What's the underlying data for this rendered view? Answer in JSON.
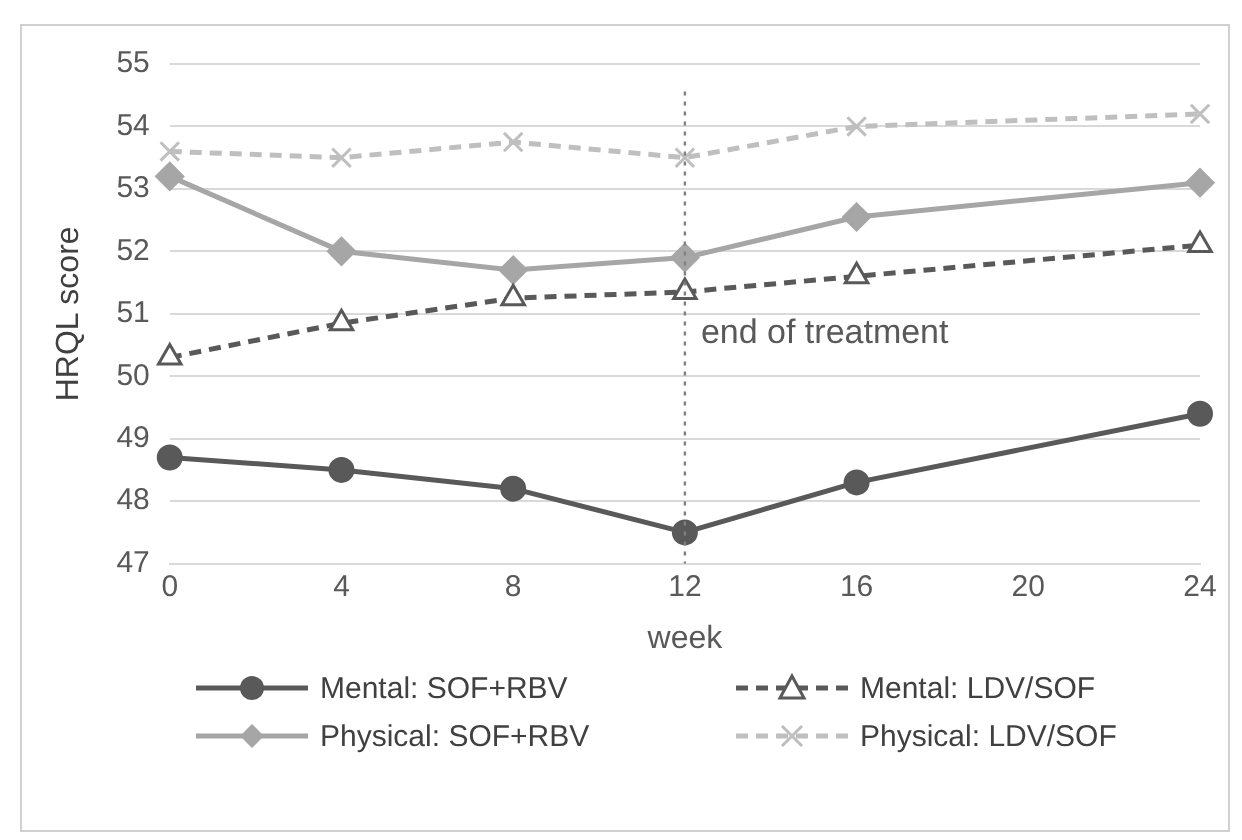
{
  "chart_data": {
    "type": "line",
    "xlabel": "week",
    "ylabel": "HRQL score",
    "x": [
      0,
      4,
      8,
      12,
      16,
      24
    ],
    "xlim": [
      0,
      24
    ],
    "xticks": [
      0,
      4,
      8,
      12,
      16,
      20,
      24
    ],
    "ylim": [
      47,
      55
    ],
    "yticks": [
      47,
      48,
      49,
      50,
      51,
      52,
      53,
      54,
      55
    ],
    "grid": "y",
    "legend": "bottom",
    "series": [
      {
        "name": "Mental: SOF+RBV",
        "color": "#595959",
        "marker": "circle",
        "line_style": "solid",
        "values": [
          48.7,
          48.5,
          48.2,
          47.5,
          48.3,
          49.4
        ]
      },
      {
        "name": "Mental: LDV/SOF",
        "color": "#595959",
        "marker": "triangle",
        "line_style": "dashed",
        "values": [
          50.3,
          50.85,
          51.25,
          51.35,
          51.6,
          52.1
        ]
      },
      {
        "name": "Physical: SOF+RBV",
        "color": "#a6a6a6",
        "marker": "diamond",
        "line_style": "solid",
        "values": [
          53.2,
          52.0,
          51.7,
          51.9,
          52.55,
          53.1
        ]
      },
      {
        "name": "Physical: LDV/SOF",
        "color": "#bfbfbf",
        "marker": "cross",
        "line_style": "dashed",
        "values": [
          53.6,
          53.5,
          53.75,
          53.5,
          54.0,
          54.2
        ]
      }
    ],
    "ref_lines": [
      {
        "axis": "x",
        "value": 12,
        "label": "end of treatment",
        "color": "#808080",
        "line_style": "dotted"
      }
    ]
  }
}
